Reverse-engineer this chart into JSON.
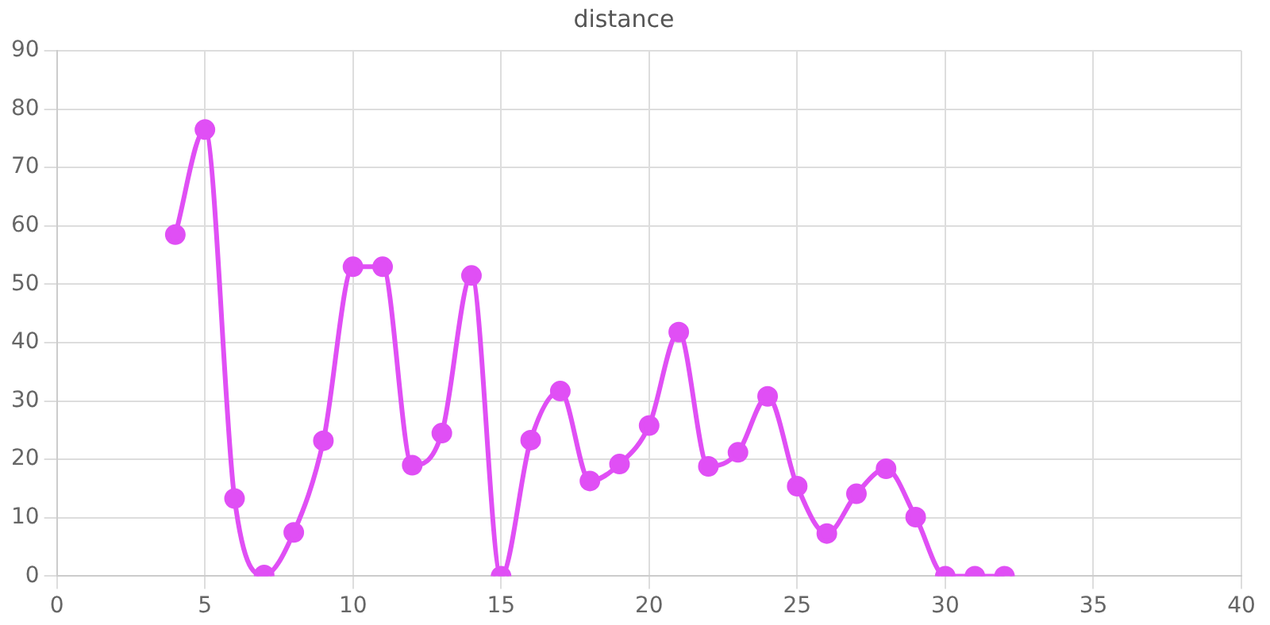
{
  "chart_data": {
    "type": "line",
    "title": "distance",
    "x": [
      4,
      5,
      6,
      7,
      8,
      9,
      10,
      11,
      12,
      13,
      14,
      15,
      16,
      17,
      18,
      19,
      20,
      21,
      22,
      23,
      24,
      25,
      26,
      27,
      28,
      29,
      30,
      31,
      32
    ],
    "series": [
      {
        "color": "#e04ff5",
        "values": [
          58.5,
          76.5,
          13.3,
          0.2,
          7.5,
          23.2,
          53,
          53,
          19,
          24.5,
          51.5,
          0,
          23.3,
          31.7,
          16.3,
          19.2,
          25.8,
          41.8,
          18.8,
          21.2,
          30.8,
          15.4,
          7.3,
          14.1,
          18.4,
          10.1,
          0,
          0,
          0
        ]
      }
    ],
    "xlim": [
      0,
      40
    ],
    "xticks": [
      0,
      5,
      10,
      15,
      20,
      25,
      30,
      35,
      40
    ],
    "ylim": [
      0,
      90
    ],
    "yticks": [
      0,
      10,
      20,
      30,
      40,
      50,
      60,
      70,
      80,
      90
    ],
    "grid": true,
    "legend": false,
    "marker": "circle",
    "line_style": "solid"
  }
}
